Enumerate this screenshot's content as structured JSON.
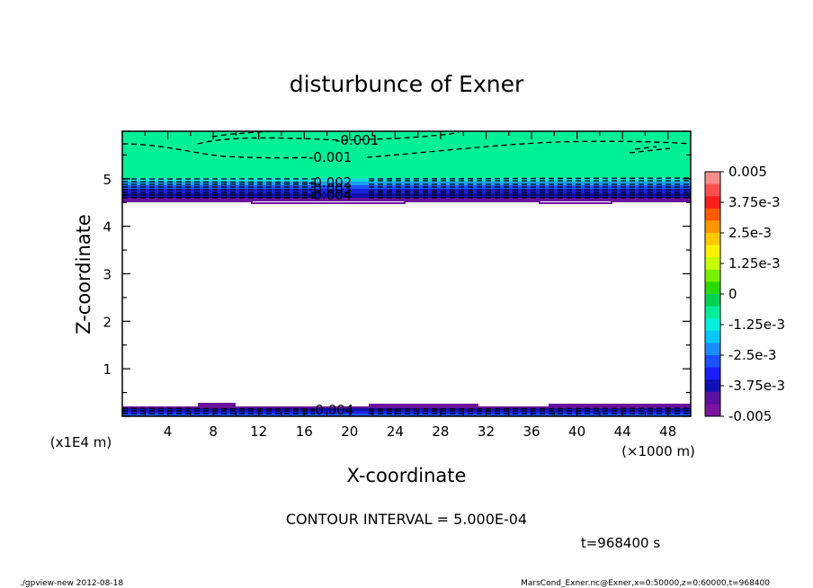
{
  "chart_data": {
    "type": "heatmap",
    "title": "disturbunce of Exner",
    "xlabel": "X-coordinate",
    "ylabel": "Z-coordinate",
    "x_unit": "(×1000 m)",
    "y_unit": "(x1E4 m)",
    "xlim": [
      0,
      50
    ],
    "ylim": [
      0,
      6
    ],
    "x_ticks": [
      "4",
      "8",
      "12",
      "16",
      "20",
      "24",
      "28",
      "32",
      "36",
      "40",
      "44",
      "48"
    ],
    "y_ticks": [
      "1",
      "2",
      "3",
      "4",
      "5"
    ],
    "contour_labels": [
      "-0.001",
      "-0.001",
      "-0.002",
      "-0.003",
      "-0.004",
      "-0.004"
    ],
    "colorbar": {
      "labels": [
        "0.005",
        "3.75e-3",
        "2.5e-3",
        "1.25e-3",
        "0",
        "-1.25e-3",
        "-2.5e-3",
        "-3.75e-3",
        "-0.005"
      ],
      "range": [
        -0.005,
        0.005
      ]
    },
    "contour_interval": "CONTOUR INTERVAL = 5.000E-04",
    "time": "t=968400 s"
  },
  "footer": {
    "left": "./gpview-new   2012-08-18",
    "right": "MarsCond_Exner.nc@Exner,x=0:50000,z=0:60000,t=968400"
  }
}
